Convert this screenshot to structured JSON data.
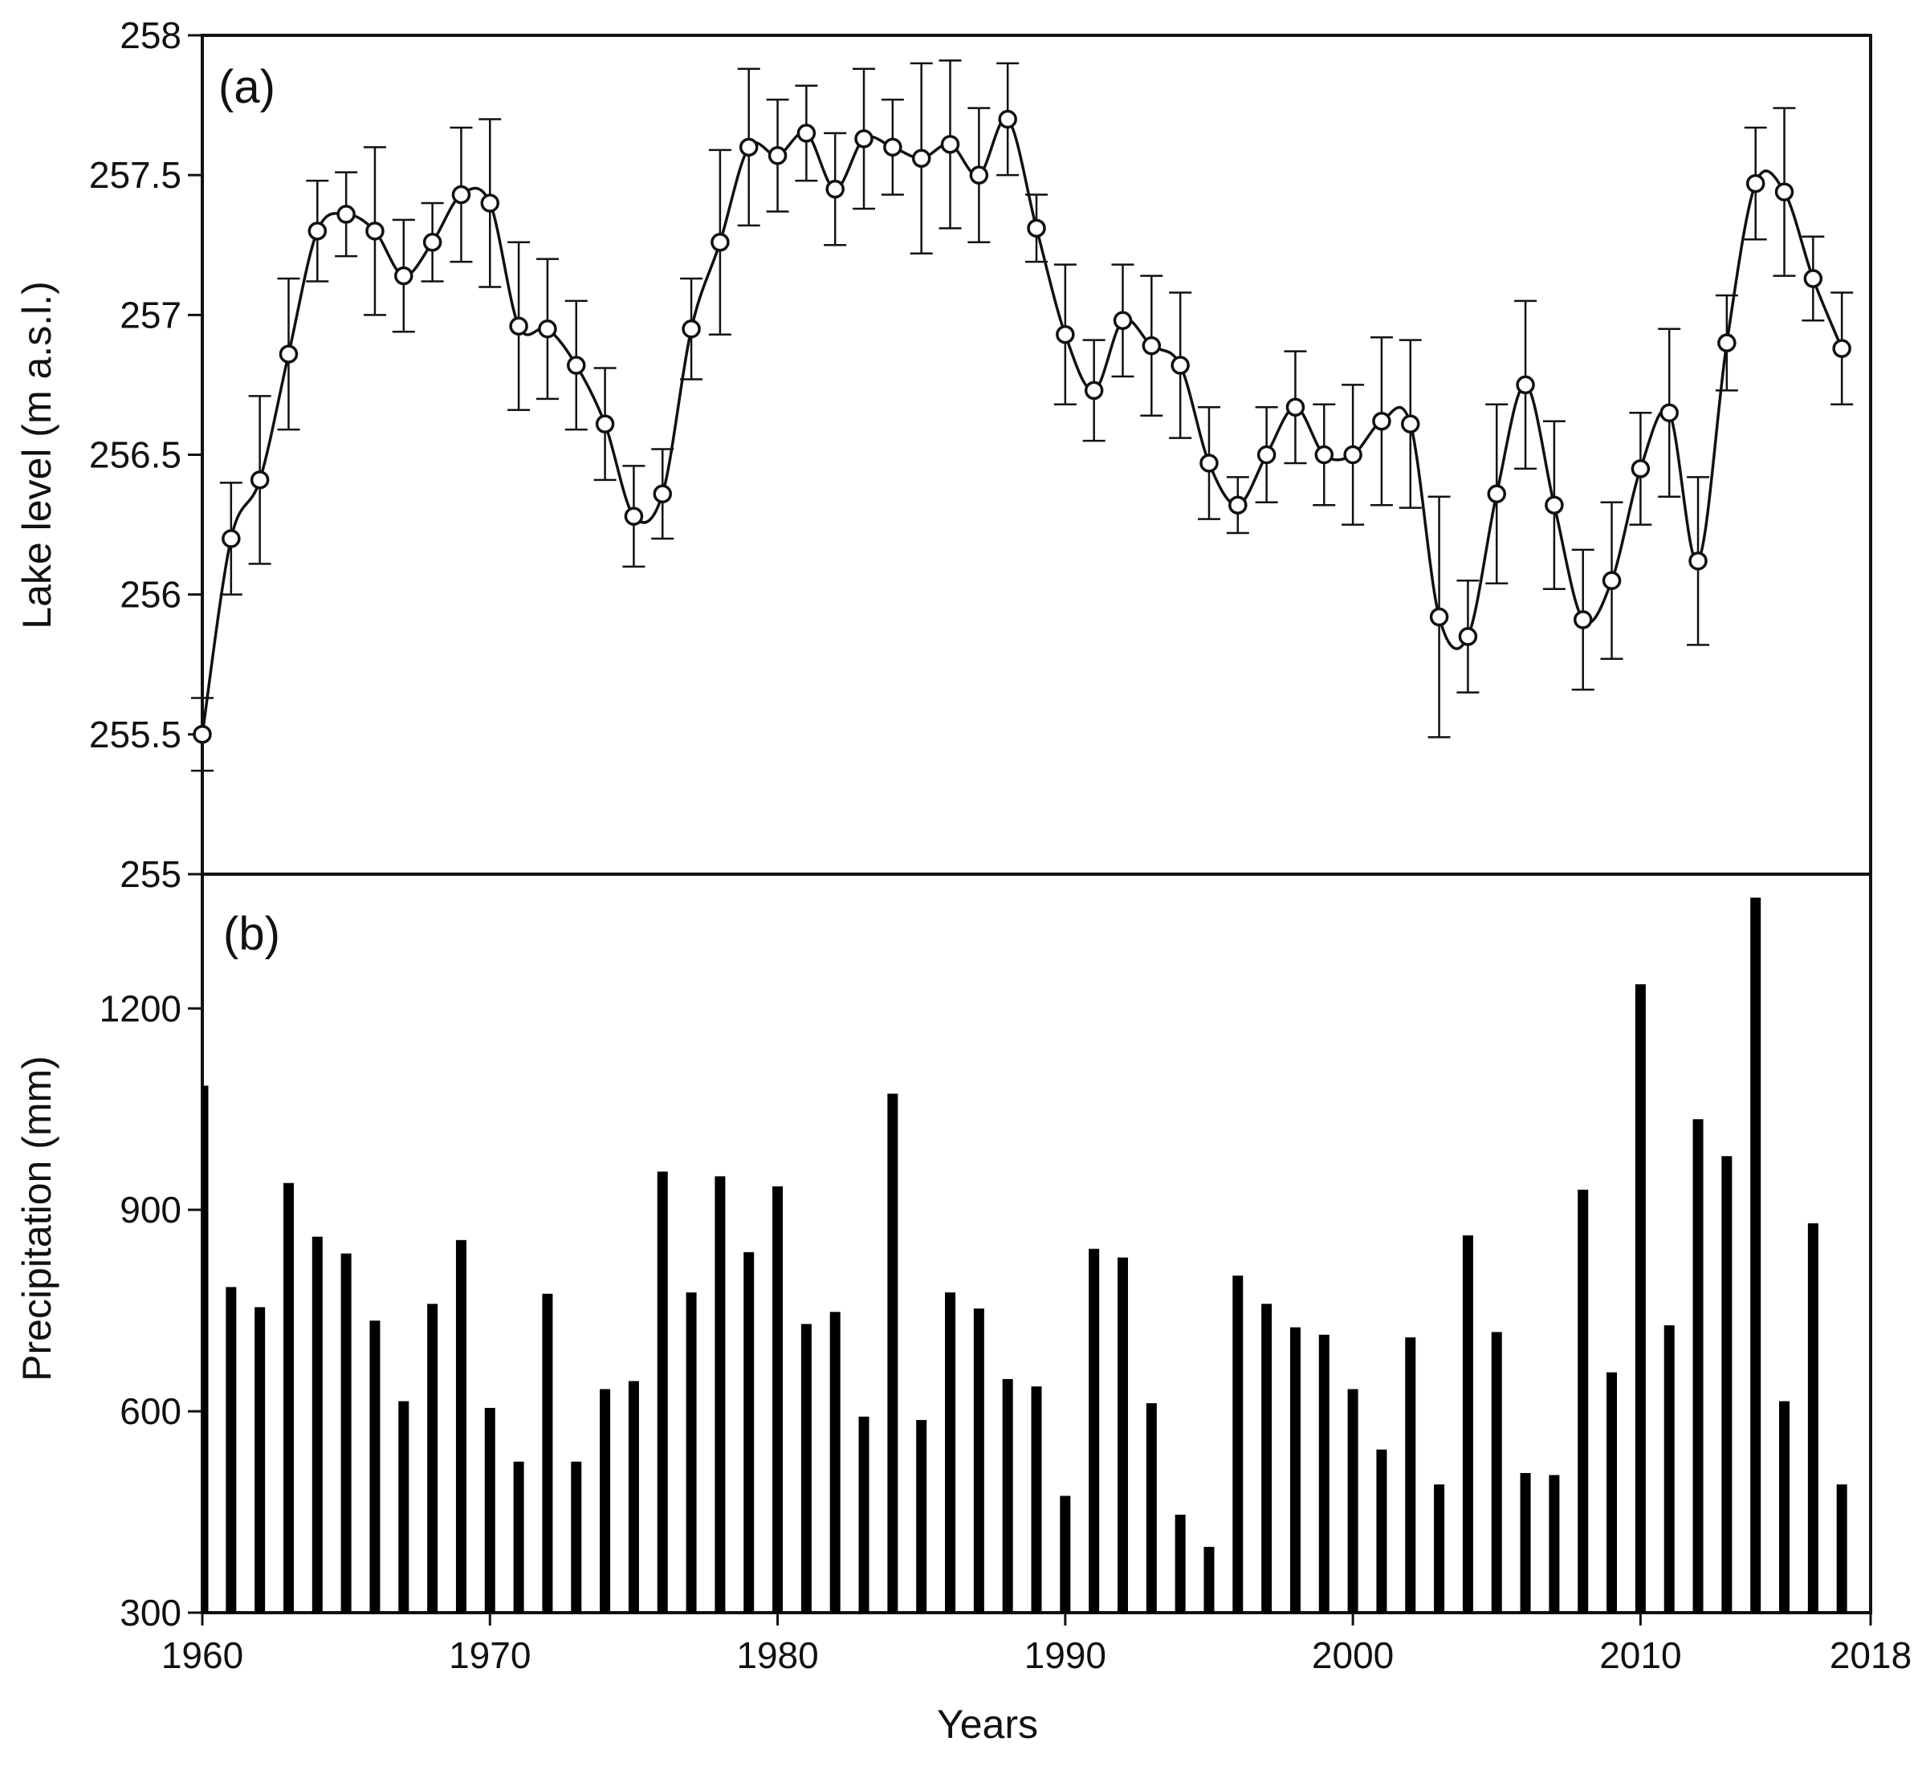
{
  "chart_data": [
    {
      "type": "line",
      "panel_label": "(a)",
      "ylabel": "Lake level (m a.s.l.)",
      "xlabel": "",
      "xlim": [
        1960,
        2018
      ],
      "ylim": [
        255,
        258
      ],
      "yticks": [
        "255",
        "255.5",
        "256",
        "256.5",
        "257",
        "257.5",
        "258"
      ],
      "markers": "open circles with error bars",
      "grid": false,
      "x": [
        1960,
        1961,
        1962,
        1963,
        1964,
        1965,
        1966,
        1967,
        1968,
        1969,
        1970,
        1971,
        1972,
        1973,
        1974,
        1975,
        1976,
        1977,
        1978,
        1979,
        1980,
        1981,
        1982,
        1983,
        1984,
        1985,
        1986,
        1987,
        1988,
        1989,
        1990,
        1991,
        1992,
        1993,
        1994,
        1995,
        1996,
        1997,
        1998,
        1999,
        2000,
        2001,
        2002,
        2003,
        2004,
        2005,
        2006,
        2007,
        2008,
        2009,
        2010,
        2011,
        2012,
        2013,
        2014,
        2015,
        2016,
        2017
      ],
      "values": [
        255.5,
        256.2,
        256.41,
        256.86,
        257.3,
        257.36,
        257.3,
        257.14,
        257.26,
        257.43,
        257.4,
        256.96,
        256.95,
        256.82,
        256.61,
        256.28,
        256.36,
        256.95,
        257.26,
        257.6,
        257.57,
        257.65,
        257.45,
        257.63,
        257.6,
        257.56,
        257.61,
        257.5,
        257.7,
        257.31,
        256.93,
        256.73,
        256.98,
        256.89,
        256.82,
        256.47,
        256.32,
        256.5,
        256.67,
        256.5,
        256.5,
        256.62,
        256.61,
        255.92,
        255.85,
        256.36,
        256.75,
        256.32,
        255.91,
        256.05,
        256.45,
        256.65,
        256.12,
        256.9,
        257.47,
        257.44,
        257.13,
        256.88
      ],
      "error": [
        0.13,
        0.2,
        0.3,
        0.27,
        0.18,
        0.15,
        0.3,
        0.2,
        0.14,
        0.24,
        0.3,
        0.3,
        0.25,
        0.23,
        0.2,
        0.18,
        0.16,
        0.18,
        0.33,
        0.28,
        0.2,
        0.17,
        0.2,
        0.25,
        0.17,
        0.34,
        0.3,
        0.24,
        0.2,
        0.12,
        0.25,
        0.18,
        0.2,
        0.25,
        0.26,
        0.2,
        0.1,
        0.17,
        0.2,
        0.18,
        0.25,
        0.3,
        0.3,
        0.43,
        0.2,
        0.32,
        0.3,
        0.3,
        0.25,
        0.28,
        0.2,
        0.3,
        0.3,
        0.17,
        0.2,
        0.3,
        0.15,
        0.2
      ]
    },
    {
      "type": "bar",
      "panel_label": "(b)",
      "ylabel": "Precipitation (mm)",
      "xlabel": "Years",
      "xlim": [
        1960,
        2018
      ],
      "ylim": [
        300,
        1400
      ],
      "yticks": [
        "300",
        "600",
        "900",
        "1200"
      ],
      "xticks": [
        "1960",
        "1970",
        "1980",
        "1990",
        "2000",
        "2010",
        "2018"
      ],
      "bar_color": "#000000",
      "grid": false,
      "x": [
        1960,
        1961,
        1962,
        1963,
        1964,
        1965,
        1966,
        1967,
        1968,
        1969,
        1970,
        1971,
        1972,
        1973,
        1974,
        1975,
        1976,
        1977,
        1978,
        1979,
        1980,
        1981,
        1982,
        1983,
        1984,
        1985,
        1986,
        1987,
        1988,
        1989,
        1990,
        1991,
        1992,
        1993,
        1994,
        1995,
        1996,
        1997,
        1998,
        1999,
        2000,
        2001,
        2002,
        2003,
        2004,
        2005,
        2006,
        2007,
        2008,
        2009,
        2010,
        2011,
        2012,
        2013,
        2014,
        2015,
        2016,
        2017
      ],
      "values": [
        1085,
        785,
        755,
        940,
        860,
        835,
        735,
        615,
        760,
        855,
        605,
        525,
        775,
        525,
        633,
        645,
        957,
        777,
        950,
        837,
        935,
        730,
        748,
        592,
        1073,
        587,
        777,
        753,
        648,
        637,
        474,
        842,
        829,
        612,
        446,
        398,
        802,
        760,
        725,
        714,
        633,
        543,
        710,
        491,
        862,
        718,
        508,
        505,
        930,
        658,
        1236,
        728,
        1035,
        980,
        1365,
        615,
        880,
        491
      ]
    }
  ]
}
